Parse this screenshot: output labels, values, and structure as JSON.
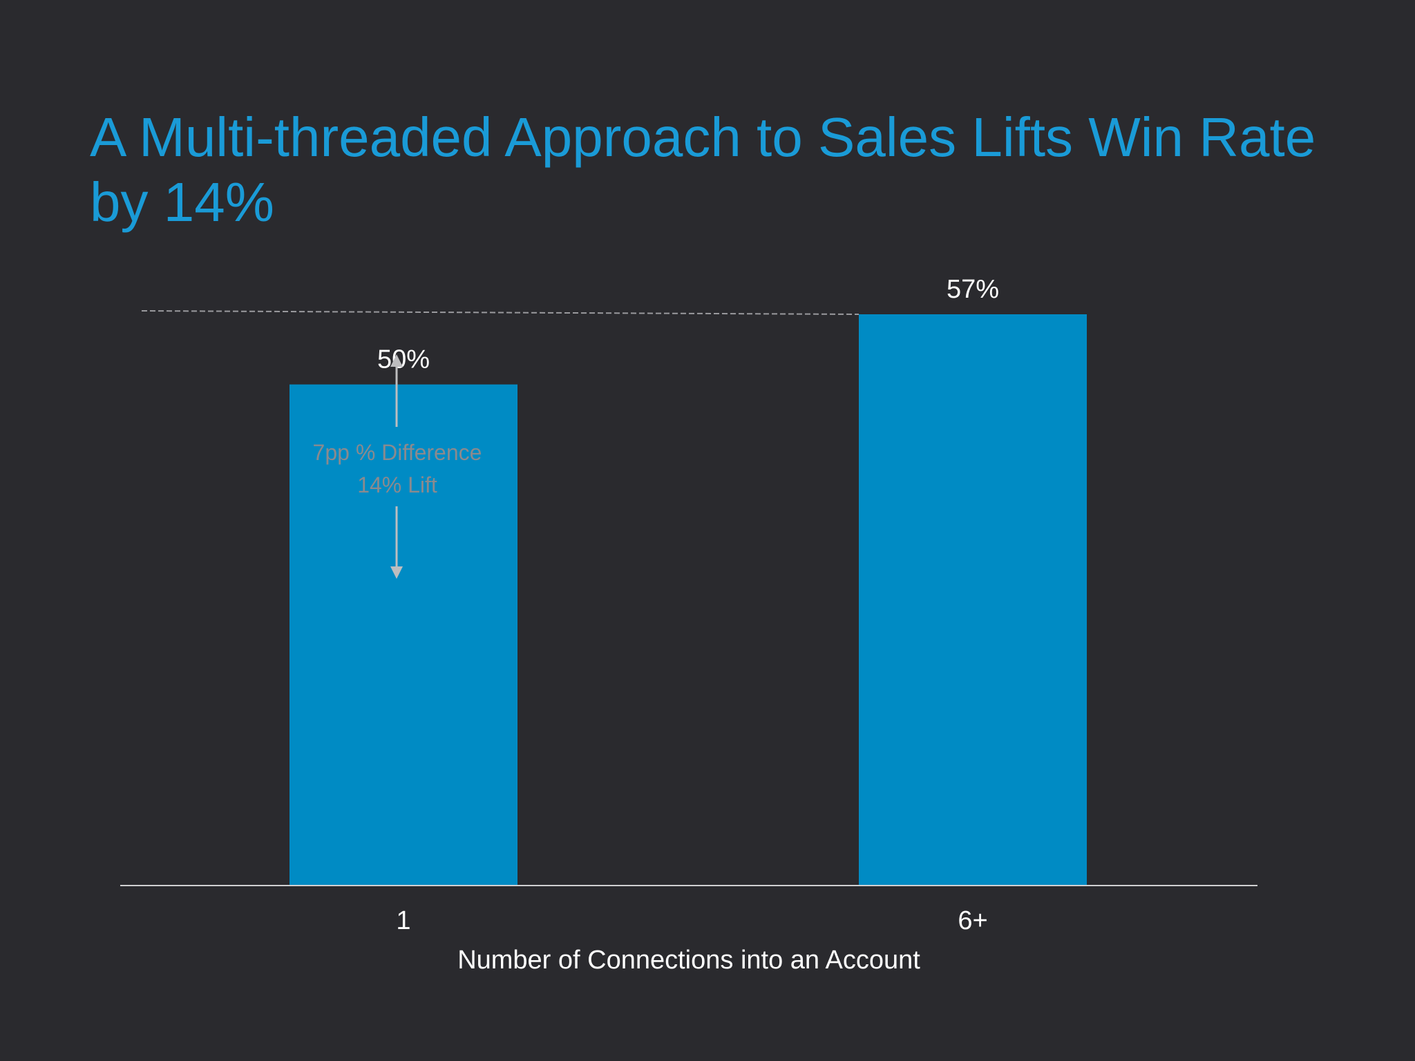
{
  "slide": {
    "title": "A Multi-threaded Approach to Sales Lifts Win Rate by 14%"
  },
  "annotation": {
    "line1": "7pp % Difference",
    "line2": "14% Lift"
  },
  "colors": {
    "background": "#2a2a2e",
    "title": "#1a9bd7",
    "bar": "#008bc4",
    "text": "#ffffff",
    "annotation": "#8a8a8e",
    "reference_line": "#9a9a9e"
  },
  "chart_data": {
    "type": "bar",
    "title": "A Multi-threaded Approach to Sales Lifts Win Rate by 14%",
    "xlabel": "Number of Connections into an Account",
    "ylabel": "",
    "categories": [
      "1",
      "6+"
    ],
    "values": [
      50,
      57
    ],
    "data_labels": [
      "50%",
      "57%"
    ],
    "ylim": [
      0,
      57
    ],
    "grid": false,
    "legend": "none",
    "annotations": [
      {
        "text": "7pp % Difference",
        "from": 50,
        "to": 57
      },
      {
        "text": "14% Lift",
        "from": 50,
        "to": 57
      }
    ],
    "reference_line": {
      "value": 57,
      "style": "dashed"
    }
  }
}
